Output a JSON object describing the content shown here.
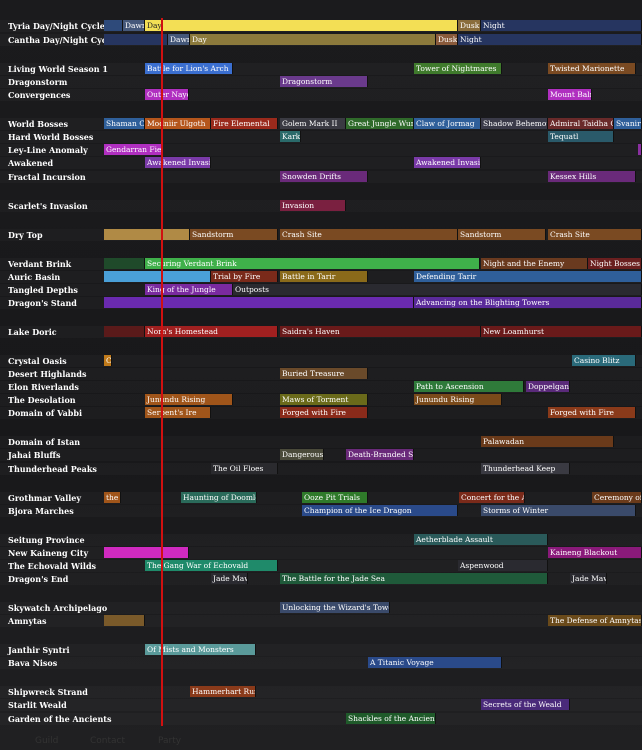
{
  "rows": [
    {
      "label": "Tyria Day/Night Cycle",
      "bars": [
        {
          "color": "#2e4a7a"
        },
        {
          "text": "Dawn",
          "color": "#45587a"
        },
        {
          "text": "Day",
          "color": "#f3df55"
        },
        {
          "text": "Dusk",
          "color": "#8a6d3b"
        },
        {
          "text": "Night",
          "color": "#263560"
        }
      ]
    },
    {
      "label": "Cantha Day/Night Cycle",
      "bars": [
        {
          "color": "#263560"
        },
        {
          "text": "Dawn",
          "color": "#45587a"
        },
        {
          "text": "Day",
          "color": "#8c7a3c"
        },
        {
          "text": "Dusk",
          "color": "#8a5a3b"
        },
        {
          "text": "Night",
          "color": "#263560"
        }
      ]
    },
    {
      "label": "Living World Season 1",
      "bars": [
        {
          "text": "Battle for Lion's Arch",
          "color": "#3b6fd0"
        },
        {
          "text": "Tower of Nightmares",
          "color": "#3f7a2c"
        },
        {
          "text": "Twisted Marionette",
          "color": "#7a4a22"
        }
      ]
    },
    {
      "label": "Dragonstorm",
      "bars": [
        {
          "text": "Dragonstorm",
          "color": "#6a3a8c"
        }
      ]
    },
    {
      "label": "Convergences",
      "bars": [
        {
          "text": "Outer Nayos",
          "color": "#b02fc0"
        },
        {
          "text": "Mount Balrior",
          "color": "#b02fc0"
        }
      ]
    },
    {
      "label": "World Bosses",
      "bars": [
        {
          "text": "Shaman Chief",
          "color": "#2f5f9a"
        },
        {
          "text": "Modniir Ulgoth",
          "color": "#b5561c"
        },
        {
          "text": "Fire Elemental",
          "color": "#9a2a1c"
        },
        {
          "text": "Golem Mark II",
          "color": "#3a3a42"
        },
        {
          "text": "Great Jungle Wurm",
          "color": "#2f6a2a"
        },
        {
          "text": "Claw of Jormag",
          "color": "#2f5f9a"
        },
        {
          "text": "Shadow Behemoth",
          "color": "#3a3a48"
        },
        {
          "text": "Admiral Taidha Covington",
          "color": "#6a2a2a"
        },
        {
          "text": "Svanir Shaman Chief",
          "color": "#2f5f9a"
        }
      ]
    },
    {
      "label": "Hard World Bosses",
      "bars": [
        {
          "text": "Karka Queen",
          "color": "#2a6a6a"
        },
        {
          "text": "Tequatl",
          "color": "#2a5a6a"
        }
      ]
    },
    {
      "label": "Ley-Line Anomaly",
      "bars": [
        {
          "text": "Gendarran Fields",
          "color": "#b02fc0"
        },
        {
          "color": "#8a2fa0"
        }
      ]
    },
    {
      "label": "Awakened",
      "bars": [
        {
          "text": "Awakened Invasion",
          "color": "#7a3aa8"
        },
        {
          "text": "Awakened Invasion",
          "color": "#7a3aa8"
        }
      ]
    },
    {
      "label": "Fractal Incursion",
      "bars": [
        {
          "text": "Snowden Drifts",
          "color": "#6a2a7a"
        },
        {
          "text": "Kessex Hills",
          "color": "#6a2a7a"
        }
      ]
    },
    {
      "label": "Scarlet's Invasion",
      "bars": [
        {
          "text": "Invasion",
          "color": "#7a2040"
        }
      ]
    },
    {
      "label": "Dry Top",
      "bars": [
        {
          "color": "#b08a45"
        },
        {
          "text": "Sandstorm",
          "color": "#7a4a22"
        },
        {
          "text": "Crash Site",
          "color": "#7a4a22"
        },
        {
          "text": "Sandstorm",
          "color": "#7a4a22"
        },
        {
          "text": "Crash Site",
          "color": "#7a4a22"
        }
      ]
    },
    {
      "label": "Verdant Brink",
      "bars": [
        {
          "color": "#1f4a2a"
        },
        {
          "text": "Securing Verdant Brink",
          "color": "#3fb04a"
        },
        {
          "text": "Night and the Enemy",
          "color": "#6a3a1f"
        },
        {
          "text": "Night Bosses",
          "color": "#6a1f1f"
        }
      ]
    },
    {
      "label": "Auric Basin",
      "bars": [
        {
          "color": "#4aa0d8"
        },
        {
          "text": "Trial by Fire",
          "color": "#7a2a1a"
        },
        {
          "text": "Battle in Tarir",
          "color": "#8a6a1a"
        },
        {
          "text": "Defending Tarir",
          "color": "#2f5f9a"
        }
      ]
    },
    {
      "label": "Tangled Depths",
      "bars": [
        {
          "text": "King of the Jungle",
          "color": "#7a2aa0"
        },
        {
          "text": "Outposts",
          "color": "#2a2a30"
        }
      ]
    },
    {
      "label": "Dragon's Stand",
      "bars": [
        {
          "color": "#6a2ab0"
        },
        {
          "text": "Advancing on the Blighting Towers",
          "color": "#5a2a9a"
        }
      ]
    },
    {
      "label": "Lake Doric",
      "bars": [
        {
          "color": "#5a1a1a"
        },
        {
          "text": "Norn's Homestead",
          "color": "#a02020"
        },
        {
          "text": "Saidra's Haven",
          "color": "#6a1a1a"
        },
        {
          "text": "New Loamhurst",
          "color": "#6a1a1a"
        }
      ]
    },
    {
      "label": "Crystal Oasis",
      "bars": [
        {
          "text": "Casino Blitz",
          "color": "#c07a1a"
        },
        {
          "text": "Casino Blitz",
          "color": "#2a6a7a"
        }
      ]
    },
    {
      "label": "Desert Highlands",
      "bars": [
        {
          "text": "Buried Treasure",
          "color": "#6a4a2a"
        }
      ]
    },
    {
      "label": "Elon Riverlands",
      "bars": [
        {
          "text": "Path to Ascension",
          "color": "#2f7a3a"
        },
        {
          "text": "Doppelganger",
          "color": "#5a2a7a"
        }
      ]
    },
    {
      "label": "The Desolation",
      "bars": [
        {
          "text": "Junundu Rising",
          "color": "#a0551a"
        },
        {
          "text": "Maws of Torment",
          "color": "#6a6a1a"
        },
        {
          "text": "Junundu Rising",
          "color": "#7a4a1a"
        }
      ]
    },
    {
      "label": "Domain of Vabbi",
      "bars": [
        {
          "text": "Serpent's Ire",
          "color": "#a0551a"
        },
        {
          "text": "Forged with Fire",
          "color": "#8a2a1a"
        },
        {
          "text": "Forged with Fire",
          "color": "#8a3a1a"
        }
      ]
    },
    {
      "label": "Domain of Istan",
      "bars": [
        {
          "text": "Palawadan",
          "color": "#6a3a1a"
        }
      ]
    },
    {
      "label": "Jahai Bluffs",
      "bars": [
        {
          "text": "Dangerous Prey",
          "color": "#4a4a3a"
        },
        {
          "text": "Death-Branded Shatterer",
          "color": "#6a2a7a"
        }
      ]
    },
    {
      "label": "Thunderhead Peaks",
      "bars": [
        {
          "text": "The Oil Floes",
          "color": "#2a2a2e"
        },
        {
          "text": "Thunderhead Keep",
          "color": "#3a3a42"
        }
      ]
    },
    {
      "label": "Grothmar Valley",
      "bars": [
        {
          "text": "the Shatterer",
          "color": "#a0551a"
        },
        {
          "text": "Haunting of Doomlore",
          "color": "#2a6a5a"
        },
        {
          "text": "Ooze Pit Trials",
          "color": "#2f7a2a"
        },
        {
          "text": "Concert for the Ages",
          "color": "#7a2a1a"
        },
        {
          "text": "Ceremony of the Acolytes",
          "color": "#6a3a1a"
        }
      ]
    },
    {
      "label": "Bjora Marches",
      "bars": [
        {
          "text": "Champion of the Ice Dragon",
          "color": "#2a4a8a"
        },
        {
          "text": "Storms of Winter",
          "color": "#3a4a6a"
        }
      ]
    },
    {
      "label": "Seitung Province",
      "bars": [
        {
          "text": "Aetherblade Assault",
          "color": "#2a5a5a"
        }
      ]
    },
    {
      "label": "New Kaineng City",
      "bars": [
        {
          "color": "#d02ac0"
        },
        {
          "text": "Kaineng Blackout",
          "color": "#8a1a7a"
        }
      ]
    },
    {
      "label": "The Echovald Wilds",
      "bars": [
        {
          "text": "The Gang War of Echovald",
          "color": "#1f8a6a"
        },
        {
          "text": "Aspenwood",
          "color": "#2a2a30"
        }
      ]
    },
    {
      "label": "Dragon's End",
      "bars": [
        {
          "text": "Jade Maw",
          "color": "#2a2a30"
        },
        {
          "text": "The Battle for the Jade Sea",
          "color": "#1f5a3a"
        },
        {
          "text": "Jade Maw",
          "color": "#2a2a30"
        }
      ]
    },
    {
      "label": "Skywatch Archipelago",
      "bars": [
        {
          "text": "Unlocking the Wizard's Tower",
          "color": "#3a4a6a"
        }
      ]
    },
    {
      "label": "Amnytas",
      "bars": [
        {
          "color": "#7a5a2a"
        },
        {
          "text": "The Defense of Amnytas",
          "color": "#6a4a1a"
        }
      ]
    },
    {
      "label": "Janthir Syntri",
      "bars": [
        {
          "text": "Of Mists and Monsters",
          "color": "#5a9a9a"
        }
      ]
    },
    {
      "label": "Bava Nisos",
      "bars": [
        {
          "text": "A Titanic Voyage",
          "color": "#2a4a8a"
        }
      ]
    },
    {
      "label": "Shipwreck Strand",
      "bars": [
        {
          "text": "Hammerhart Rumble",
          "color": "#8a3a1a"
        }
      ]
    },
    {
      "label": "Starlit Weald",
      "bars": [
        {
          "text": "Secrets of the Weald",
          "color": "#4a2a7a"
        }
      ]
    },
    {
      "label": "Garden of the Ancients",
      "bars": [
        {
          "text": "Shackles of the Ancients",
          "color": "#1f5a2a"
        }
      ]
    }
  ],
  "footer": [
    "Guild",
    "Contact",
    "Party"
  ],
  "now_color": "#d01010"
}
